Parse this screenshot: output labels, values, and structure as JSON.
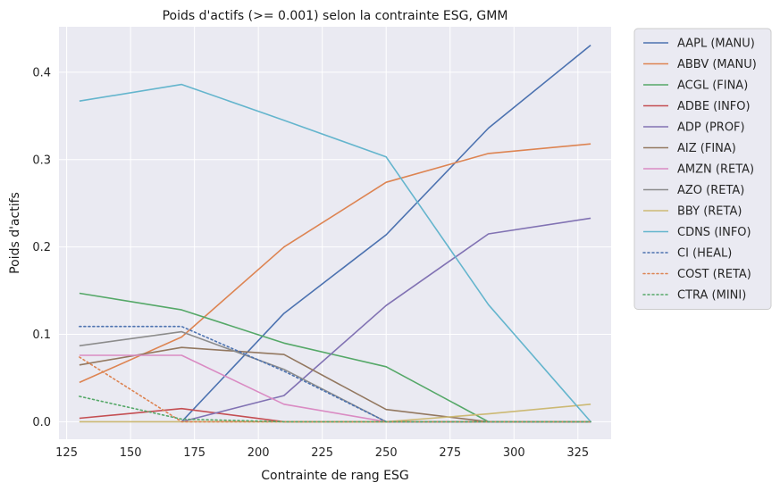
{
  "chart_data": {
    "type": "line",
    "title": "Poids d'actifs (>= 0.001) selon la contrainte ESG, GMM",
    "xlabel": "Contrainte de rang ESG",
    "ylabel": "Poids d'actifs",
    "xlim": [
      122,
      338
    ],
    "ylim": [
      -0.02,
      0.452
    ],
    "xticks": [
      125,
      150,
      175,
      200,
      225,
      250,
      275,
      300,
      325
    ],
    "yticks": [
      0.0,
      0.1,
      0.2,
      0.3,
      0.4
    ],
    "ytick_labels": [
      "0.0",
      "0.1",
      "0.2",
      "0.3",
      "0.4"
    ],
    "grid": true,
    "legend_position": "outside-right",
    "x": [
      130,
      170,
      210,
      250,
      290,
      330
    ],
    "series": [
      {
        "name": "AAPL (MANU)",
        "color": "#4c72b0",
        "style": "solid",
        "values": [
          null,
          0.0,
          0.124,
          0.214,
          0.336,
          0.431
        ]
      },
      {
        "name": "ABBV (MANU)",
        "color": "#dd8452",
        "style": "solid",
        "values": [
          0.045,
          0.097,
          0.2,
          0.274,
          0.307,
          0.318
        ]
      },
      {
        "name": "ACGL (FINA)",
        "color": "#55a868",
        "style": "solid",
        "values": [
          0.147,
          0.128,
          0.09,
          0.063,
          0.0,
          0.0
        ]
      },
      {
        "name": "ADBE (INFO)",
        "color": "#c44e52",
        "style": "solid",
        "values": [
          0.004,
          0.015,
          0.0,
          0.0,
          0.0,
          0.0
        ]
      },
      {
        "name": "ADP (PROF)",
        "color": "#8172b3",
        "style": "solid",
        "values": [
          null,
          0.0,
          0.03,
          0.133,
          0.215,
          0.233
        ]
      },
      {
        "name": "AIZ (FINA)",
        "color": "#937860",
        "style": "solid",
        "values": [
          0.065,
          0.085,
          0.077,
          0.014,
          0.0,
          0.0
        ]
      },
      {
        "name": "AMZN (RETA)",
        "color": "#da8bc3",
        "style": "solid",
        "values": [
          0.076,
          0.076,
          0.02,
          0.0,
          0.0,
          0.0
        ]
      },
      {
        "name": "AZO (RETA)",
        "color": "#8c8c8c",
        "style": "solid",
        "values": [
          0.087,
          0.103,
          0.06,
          0.0,
          0.0,
          0.0
        ]
      },
      {
        "name": "BBY (RETA)",
        "color": "#ccb974",
        "style": "solid",
        "values": [
          0.0,
          0.0,
          0.0,
          0.0,
          0.009,
          0.02
        ]
      },
      {
        "name": "CDNS (INFO)",
        "color": "#64b5cd",
        "style": "solid",
        "values": [
          0.367,
          0.386,
          0.345,
          0.303,
          0.134,
          0.0
        ]
      },
      {
        "name": "CI (HEAL)",
        "color": "#4c72b0",
        "style": "dotted",
        "values": [
          0.109,
          0.109,
          0.058,
          0.0,
          0.0,
          0.0
        ]
      },
      {
        "name": "COST (RETA)",
        "color": "#dd8452",
        "style": "dotted",
        "values": [
          0.074,
          0.0,
          0.0,
          0.0,
          0.0,
          0.0
        ]
      },
      {
        "name": "CTRA (MINI)",
        "color": "#55a868",
        "style": "dotted",
        "values": [
          0.029,
          0.003,
          0.0,
          0.0,
          0.0,
          0.0
        ]
      }
    ]
  }
}
